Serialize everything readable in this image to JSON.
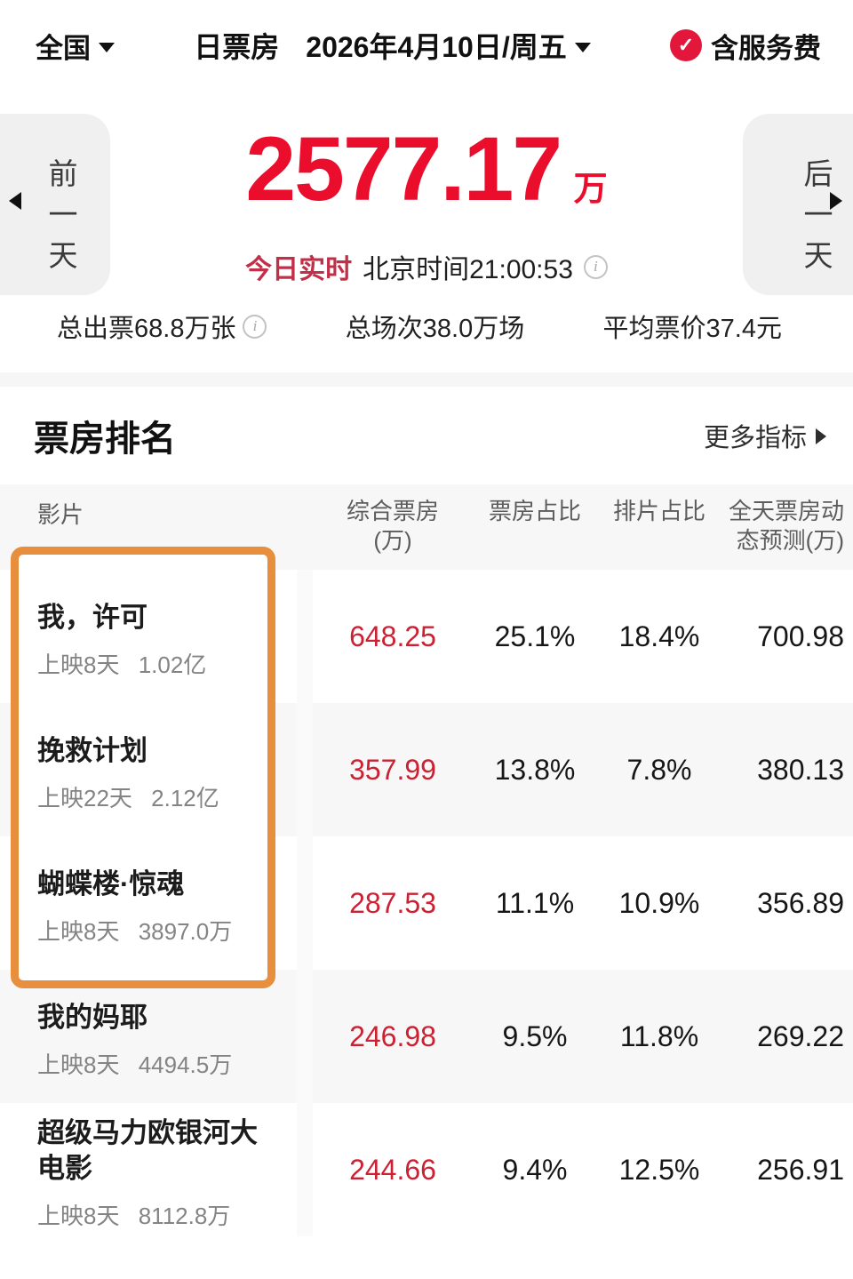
{
  "topbar": {
    "region": "全国",
    "title": "日票房",
    "date": "2026年4月10日/周五",
    "service_fee_label": "含服务费",
    "check_glyph": "✓"
  },
  "hero": {
    "amount": "2577.17",
    "unit": "万",
    "realtime_label": "今日实时",
    "clock": "北京时间21:00:53",
    "prev_label": "前一天",
    "next_label": "后一天",
    "info_glyph": "i"
  },
  "stats": {
    "tickets": "总出票68.8万张",
    "sessions": "总场次38.0万场",
    "avg_price": "平均票价37.4元"
  },
  "ranking": {
    "section_title": "票房排名",
    "more_label": "更多指标"
  },
  "table": {
    "headers": {
      "film": "影片",
      "bo_line1": "综合票房",
      "bo_line2": "(万)",
      "share": "票房占比",
      "screen": "排片占比",
      "pred_line1": "全天票房动",
      "pred_line2": "态预测(万)"
    },
    "rows": [
      {
        "title": "我，许可",
        "days": "上映8天",
        "total": "1.02亿",
        "bo": "648.25",
        "share": "25.1%",
        "screen": "18.4%",
        "pred": "700.98"
      },
      {
        "title": "挽救计划",
        "days": "上映22天",
        "total": "2.12亿",
        "bo": "357.99",
        "share": "13.8%",
        "screen": "7.8%",
        "pred": "380.13"
      },
      {
        "title": "蝴蝶楼·惊魂",
        "days": "上映8天",
        "total": "3897.0万",
        "bo": "287.53",
        "share": "11.1%",
        "screen": "10.9%",
        "pred": "356.89"
      },
      {
        "title": "我的妈耶",
        "days": "上映8天",
        "total": "4494.5万",
        "bo": "246.98",
        "share": "9.5%",
        "screen": "11.8%",
        "pred": "269.22"
      },
      {
        "title": "超级马力欧银河大电影",
        "days": "上映8天",
        "total": "8112.8万",
        "bo": "244.66",
        "share": "9.4%",
        "screen": "12.5%",
        "pred": "256.91"
      }
    ]
  },
  "colors": {
    "primary_red": "#ea0e2c",
    "value_red": "#cc2133",
    "badge_red": "#e2173b",
    "realtime_red": "#c03049",
    "highlight_orange": "#e78f3c"
  }
}
